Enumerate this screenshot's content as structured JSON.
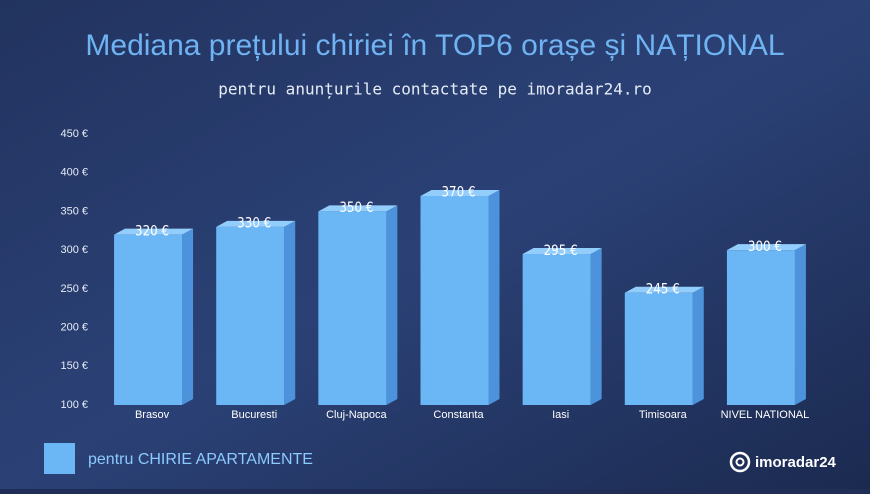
{
  "chart_data": {
    "type": "bar3d",
    "title": "Mediana prețului chiriei în TOP6 orașe și NAȚIONAL",
    "subtitle": "pentru anunțurile contactate pe imoradar24.ro",
    "categories": [
      "Brasov",
      "Bucuresti",
      "Cluj-Napoca",
      "Constanta",
      "Iasi",
      "Timisoara",
      "NIVEL NATIONAL"
    ],
    "series": [
      {
        "name": "pentru CHIRIE APARTAMENTE",
        "color": "#6bb7f5",
        "values": [
          320,
          330,
          350,
          370,
          295,
          245,
          300
        ],
        "value_labels": [
          "320 €",
          "330 €",
          "350 €",
          "370 €",
          "295 €",
          "245 €",
          "300 €"
        ]
      }
    ],
    "ylim": [
      100,
      450
    ],
    "yticks": [
      {
        "value": 100,
        "label": "100 €"
      },
      {
        "value": 150,
        "label": "150 €"
      },
      {
        "value": 200,
        "label": "200 €"
      },
      {
        "value": 250,
        "label": "250 €"
      },
      {
        "value": 300,
        "label": "300 €"
      },
      {
        "value": 350,
        "label": "350 €"
      },
      {
        "value": 400,
        "label": "400 €"
      },
      {
        "value": 450,
        "label": "450 €"
      }
    ],
    "grid": false,
    "brand": "imoradar24"
  }
}
